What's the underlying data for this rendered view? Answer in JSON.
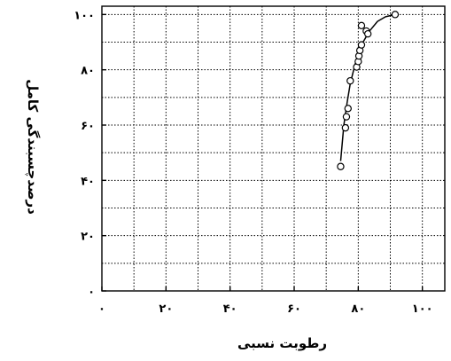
{
  "chart_data": {
    "type": "scatter",
    "xlabel": "رطوبت نسبی",
    "ylabel": "درصدچسبندگی کامل",
    "xlim": [
      0,
      107
    ],
    "ylim": [
      0,
      103
    ],
    "grid": true,
    "x_ticks": [
      0,
      20,
      40,
      60,
      80,
      100
    ],
    "y_ticks": [
      0,
      20,
      40,
      60,
      80,
      100
    ],
    "x_tick_labels": [
      "۰",
      "۲۰",
      "۴۰",
      "۶۰",
      "۸۰",
      "۱۰۰"
    ],
    "y_tick_labels": [
      "۰",
      "۲۰",
      "۴۰",
      "۶۰",
      "۸۰",
      "۱۰۰"
    ],
    "series": [
      {
        "marker": "open-circle",
        "points": [
          [
            74.5,
            45
          ],
          [
            76,
            59
          ],
          [
            76.3,
            63
          ],
          [
            76.8,
            66
          ],
          [
            77.5,
            76
          ],
          [
            79.5,
            81
          ],
          [
            80,
            83
          ],
          [
            80.2,
            85
          ],
          [
            80.5,
            87
          ],
          [
            81,
            89
          ],
          [
            81,
            96
          ],
          [
            82.5,
            94
          ],
          [
            83,
            93
          ],
          [
            91.5,
            100
          ]
        ]
      }
    ],
    "trend_line": [
      [
        74.5,
        47
      ],
      [
        75.5,
        60
      ],
      [
        76.5,
        68
      ],
      [
        77.5,
        75
      ],
      [
        79,
        82
      ],
      [
        81,
        89
      ],
      [
        83.5,
        94
      ],
      [
        86,
        97.5
      ],
      [
        88.5,
        99.2
      ],
      [
        91.5,
        100
      ]
    ]
  }
}
